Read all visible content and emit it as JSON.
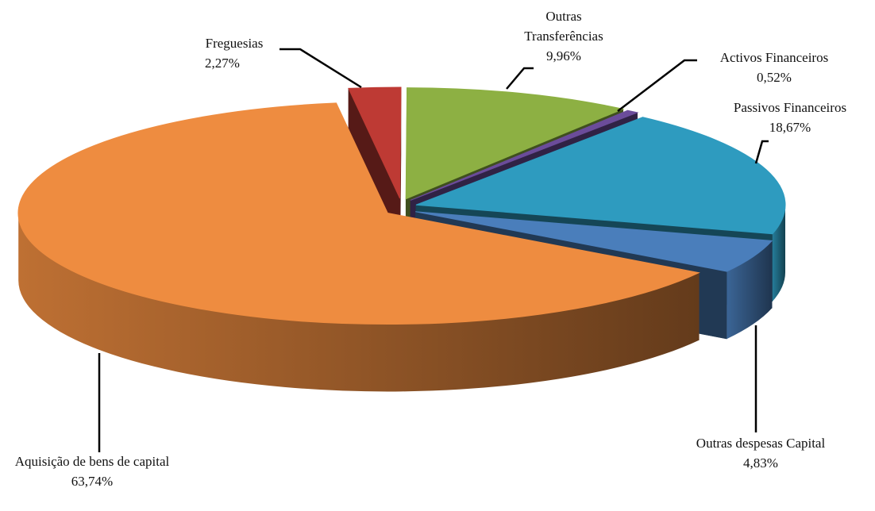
{
  "chart_data": {
    "type": "pie3d",
    "categories": [
      "Freguesias",
      "Outras Transferências",
      "Activos Financeiros",
      "Passivos Financeiros",
      "Outras despesas Capital",
      "Aquisição de bens de capital"
    ],
    "values": [
      2.27,
      9.96,
      0.52,
      18.67,
      4.83,
      63.74
    ],
    "value_labels": [
      "2,27%",
      "9,96%",
      "0,52%",
      "18,67%",
      "4,83%",
      "63,74%"
    ],
    "colors": [
      "#be3a34",
      "#8db043",
      "#6b4c9a",
      "#2e9bbf",
      "#4a7ebb",
      "#ee8c40"
    ]
  }
}
